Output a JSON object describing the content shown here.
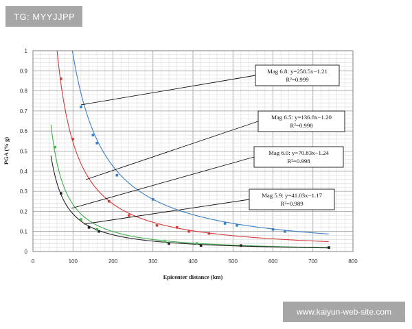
{
  "tag_label": "TG: MYYJJPP",
  "watermark": "www.kaiyun-web-site.com",
  "chart_data": {
    "type": "scatter",
    "title": "",
    "xlabel": "Epicenter distance (km)",
    "ylabel": "PGA (% g)",
    "xlim": [
      0,
      800
    ],
    "ylim": [
      0,
      1
    ],
    "xticks": [
      0,
      100,
      200,
      300,
      400,
      500,
      600,
      700,
      800
    ],
    "yticks": [
      0,
      0.1,
      0.2,
      0.3,
      0.4,
      0.5,
      0.6,
      0.7,
      0.8,
      0.9,
      1
    ],
    "grid": true,
    "series": [
      {
        "name": "Mag 6.8",
        "color": "#3a7fc4",
        "fit": {
          "a": 258.5,
          "b": -1.21
        },
        "equation": "Mag 6.8: y=258.5x−1.21",
        "r2": "R²=0.999",
        "points": [
          [
            120,
            0.72
          ],
          [
            150,
            0.58
          ],
          [
            160,
            0.54
          ],
          [
            210,
            0.38
          ],
          [
            300,
            0.26
          ],
          [
            480,
            0.14
          ],
          [
            510,
            0.13
          ],
          [
            600,
            0.11
          ],
          [
            630,
            0.1
          ]
        ]
      },
      {
        "name": "Mag 6.5",
        "color": "#d23a3a",
        "fit": {
          "a": 136.8,
          "b": -1.2
        },
        "equation": "Mag 6.5: y=136.8x−1.20",
        "r2": "R²=0.998",
        "points": [
          [
            70,
            0.86
          ],
          [
            100,
            0.56
          ],
          [
            190,
            0.25
          ],
          [
            240,
            0.18
          ],
          [
            310,
            0.13
          ],
          [
            360,
            0.12
          ],
          [
            390,
            0.1
          ],
          [
            440,
            0.09
          ]
        ]
      },
      {
        "name": "Mag 6.0",
        "color": "#3cae4a",
        "fit": {
          "a": 70.83,
          "b": -1.24
        },
        "equation": "Mag 6.0: y=70.83x−1.24",
        "r2": "R²=0.998",
        "points": [
          [
            55,
            0.52
          ],
          [
            120,
            0.16
          ],
          [
            160,
            0.11
          ],
          [
            330,
            0.05
          ],
          [
            410,
            0.04
          ],
          [
            740,
            0.02
          ]
        ]
      },
      {
        "name": "Mag 5.9",
        "color": "#222222",
        "fit": {
          "a": 41.03,
          "b": -1.17
        },
        "equation": "Mag 5.9: y=41.03x−1.17",
        "r2": "R²=0.989",
        "points": [
          [
            70,
            0.29
          ],
          [
            140,
            0.12
          ],
          [
            165,
            0.1
          ],
          [
            340,
            0.04
          ],
          [
            420,
            0.03
          ],
          [
            520,
            0.03
          ],
          [
            740,
            0.02
          ]
        ]
      }
    ]
  }
}
